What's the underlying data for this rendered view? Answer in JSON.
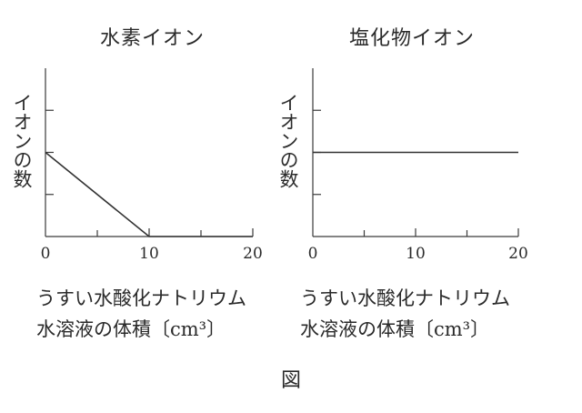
{
  "figure_label": "図",
  "chart_data": [
    {
      "type": "line",
      "title": "水素イオン",
      "ylabel": "イオンの数",
      "xlabel_line1": "うすい水酸化ナトリウム",
      "xlabel_line2": "水溶液の体積〔cm³〕",
      "xlim": [
        0,
        20
      ],
      "ylim": [
        0,
        4
      ],
      "xticks": [
        0,
        10,
        20
      ],
      "xticklabels": [
        "0",
        "10",
        "20"
      ],
      "minor_xticks": [
        5,
        15
      ],
      "yticks": [
        1,
        2,
        3
      ],
      "series": [
        {
          "x": [
            0,
            10,
            20
          ],
          "y": [
            2,
            0,
            0
          ]
        }
      ]
    },
    {
      "type": "line",
      "title": "塩化物イオン",
      "ylabel": "イオンの数",
      "xlabel_line1": "うすい水酸化ナトリウム",
      "xlabel_line2": "水溶液の体積〔cm³〕",
      "xlim": [
        0,
        20
      ],
      "ylim": [
        0,
        4
      ],
      "xticks": [
        0,
        10,
        20
      ],
      "xticklabels": [
        "0",
        "10",
        "20"
      ],
      "minor_xticks": [
        5,
        15
      ],
      "yticks": [
        1,
        2,
        3
      ],
      "series": [
        {
          "x": [
            0,
            20
          ],
          "y": [
            2,
            2
          ]
        }
      ]
    }
  ]
}
